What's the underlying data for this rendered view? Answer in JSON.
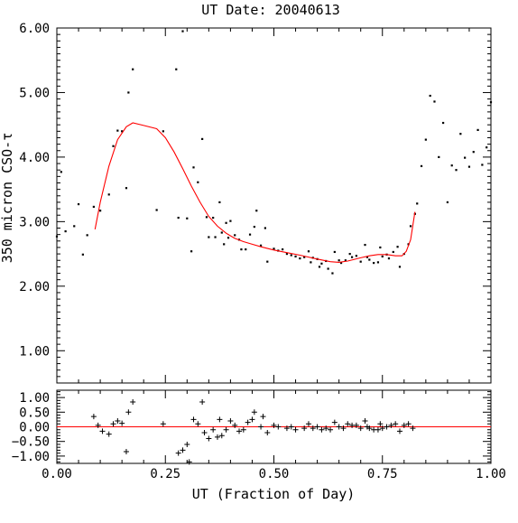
{
  "chart_data": [
    {
      "type": "scatter",
      "title": "UT Date: 20040613",
      "ylabel": "350 micron CSO-τ",
      "xlim": [
        0.0,
        1.0
      ],
      "ylim": [
        0.5,
        6.0
      ],
      "x_ticks": [
        0.0,
        0.25,
        0.5,
        0.75,
        1.0
      ],
      "y_ticks": [
        1.0,
        2.0,
        3.0,
        4.0,
        5.0,
        6.0
      ],
      "y_tick_labels": [
        "1.00",
        "2.00",
        "3.00",
        "4.00",
        "5.00",
        "6.00"
      ],
      "colors": {
        "points": "#000000",
        "fit": "#ff0000"
      },
      "series": [
        {
          "style": "points",
          "points": [
            [
              0.0,
              2.77
            ],
            [
              0.01,
              3.77
            ],
            [
              0.02,
              2.85
            ],
            [
              0.04,
              2.93
            ],
            [
              0.05,
              3.27
            ],
            [
              0.06,
              2.49
            ],
            [
              0.07,
              2.79
            ],
            [
              0.085,
              3.23
            ],
            [
              0.1,
              3.17
            ],
            [
              0.12,
              3.42
            ],
            [
              0.13,
              4.17
            ],
            [
              0.14,
              4.41
            ],
            [
              0.15,
              4.4
            ],
            [
              0.16,
              3.52
            ],
            [
              0.165,
              5.0
            ],
            [
              0.175,
              5.36
            ],
            [
              0.23,
              3.18
            ],
            [
              0.245,
              4.4
            ],
            [
              0.275,
              5.36
            ],
            [
              0.28,
              3.06
            ],
            [
              0.29,
              5.95
            ],
            [
              0.3,
              3.05
            ],
            [
              0.31,
              2.54
            ],
            [
              0.315,
              3.84
            ],
            [
              0.325,
              3.61
            ],
            [
              0.335,
              4.28
            ],
            [
              0.345,
              3.07
            ],
            [
              0.35,
              2.76
            ],
            [
              0.36,
              3.06
            ],
            [
              0.365,
              2.76
            ],
            [
              0.375,
              3.3
            ],
            [
              0.38,
              2.83
            ],
            [
              0.385,
              2.65
            ],
            [
              0.39,
              2.98
            ],
            [
              0.395,
              2.75
            ],
            [
              0.4,
              3.01
            ],
            [
              0.41,
              2.79
            ],
            [
              0.42,
              2.72
            ],
            [
              0.425,
              2.57
            ],
            [
              0.435,
              2.57
            ],
            [
              0.445,
              2.8
            ],
            [
              0.455,
              2.92
            ],
            [
              0.46,
              3.17
            ],
            [
              0.47,
              2.63
            ],
            [
              0.48,
              2.9
            ],
            [
              0.485,
              2.38
            ],
            [
              0.5,
              2.58
            ],
            [
              0.51,
              2.55
            ],
            [
              0.52,
              2.57
            ],
            [
              0.53,
              2.5
            ],
            [
              0.54,
              2.48
            ],
            [
              0.55,
              2.46
            ],
            [
              0.56,
              2.43
            ],
            [
              0.57,
              2.45
            ],
            [
              0.58,
              2.54
            ],
            [
              0.585,
              2.37
            ],
            [
              0.59,
              2.44
            ],
            [
              0.6,
              2.42
            ],
            [
              0.605,
              2.3
            ],
            [
              0.61,
              2.35
            ],
            [
              0.62,
              2.39
            ],
            [
              0.625,
              2.27
            ],
            [
              0.635,
              2.2
            ],
            [
              0.64,
              2.53
            ],
            [
              0.65,
              2.4
            ],
            [
              0.655,
              2.36
            ],
            [
              0.665,
              2.4
            ],
            [
              0.675,
              2.5
            ],
            [
              0.68,
              2.45
            ],
            [
              0.69,
              2.47
            ],
            [
              0.7,
              2.38
            ],
            [
              0.71,
              2.64
            ],
            [
              0.715,
              2.45
            ],
            [
              0.72,
              2.41
            ],
            [
              0.73,
              2.36
            ],
            [
              0.74,
              2.37
            ],
            [
              0.745,
              2.6
            ],
            [
              0.75,
              2.46
            ],
            [
              0.76,
              2.49
            ],
            [
              0.765,
              2.43
            ],
            [
              0.775,
              2.53
            ],
            [
              0.785,
              2.61
            ],
            [
              0.79,
              2.3
            ],
            [
              0.8,
              2.5
            ],
            [
              0.81,
              2.65
            ],
            [
              0.815,
              2.93
            ],
            [
              0.825,
              3.12
            ],
            [
              0.83,
              3.28
            ],
            [
              0.84,
              3.86
            ],
            [
              0.85,
              4.27
            ],
            [
              0.86,
              4.95
            ],
            [
              0.87,
              4.86
            ],
            [
              0.88,
              4.0
            ],
            [
              0.89,
              4.53
            ],
            [
              0.9,
              3.3
            ],
            [
              0.91,
              3.87
            ],
            [
              0.92,
              3.8
            ],
            [
              0.93,
              4.36
            ],
            [
              0.94,
              3.99
            ],
            [
              0.95,
              3.85
            ],
            [
              0.96,
              4.08
            ],
            [
              0.97,
              4.42
            ],
            [
              0.98,
              3.88
            ],
            [
              0.99,
              4.15
            ],
            [
              1.0,
              4.85
            ]
          ]
        },
        {
          "style": "line",
          "points": [
            [
              0.088,
              2.88
            ],
            [
              0.1,
              3.3
            ],
            [
              0.12,
              3.86
            ],
            [
              0.14,
              4.27
            ],
            [
              0.16,
              4.47
            ],
            [
              0.175,
              4.53
            ],
            [
              0.2,
              4.49
            ],
            [
              0.23,
              4.44
            ],
            [
              0.25,
              4.3
            ],
            [
              0.27,
              4.08
            ],
            [
              0.29,
              3.82
            ],
            [
              0.31,
              3.55
            ],
            [
              0.33,
              3.3
            ],
            [
              0.35,
              3.08
            ],
            [
              0.37,
              2.93
            ],
            [
              0.39,
              2.82
            ],
            [
              0.41,
              2.74
            ],
            [
              0.43,
              2.69
            ],
            [
              0.45,
              2.65
            ],
            [
              0.47,
              2.61
            ],
            [
              0.5,
              2.56
            ],
            [
              0.53,
              2.52
            ],
            [
              0.56,
              2.48
            ],
            [
              0.6,
              2.42
            ],
            [
              0.63,
              2.38
            ],
            [
              0.65,
              2.37
            ],
            [
              0.67,
              2.39
            ],
            [
              0.7,
              2.44
            ],
            [
              0.72,
              2.47
            ],
            [
              0.74,
              2.49
            ],
            [
              0.76,
              2.49
            ],
            [
              0.78,
              2.47
            ],
            [
              0.795,
              2.47
            ],
            [
              0.805,
              2.54
            ],
            [
              0.815,
              2.72
            ],
            [
              0.825,
              3.15
            ]
          ]
        }
      ]
    },
    {
      "type": "scatter",
      "xlabel": "UT (Fraction of Day)",
      "xlim": [
        0.0,
        1.0
      ],
      "ylim": [
        -1.25,
        1.25
      ],
      "x_ticks": [
        0.0,
        0.25,
        0.5,
        0.75,
        1.0
      ],
      "x_tick_labels": [
        "0.00",
        "0.25",
        "0.50",
        "0.75",
        "1.00"
      ],
      "y_ticks": [
        -1.0,
        -0.5,
        0.0,
        0.5,
        1.0
      ],
      "y_tick_labels": [
        "−1.00",
        "−0.50",
        "0.00",
        "0.50",
        "1.00"
      ],
      "colors": {
        "points": "#000000",
        "zero_line": "#ff0000"
      },
      "series": [
        {
          "style": "plus",
          "points": [
            [
              0.085,
              0.35
            ],
            [
              0.095,
              0.05
            ],
            [
              0.105,
              -0.15
            ],
            [
              0.12,
              -0.25
            ],
            [
              0.13,
              0.1
            ],
            [
              0.14,
              0.2
            ],
            [
              0.15,
              0.12
            ],
            [
              0.16,
              -0.85
            ],
            [
              0.165,
              0.5
            ],
            [
              0.175,
              0.85
            ],
            [
              0.245,
              0.1
            ],
            [
              0.28,
              -0.9
            ],
            [
              0.29,
              -0.8
            ],
            [
              0.3,
              -0.6
            ],
            [
              0.305,
              -1.2
            ],
            [
              0.315,
              0.25
            ],
            [
              0.325,
              0.1
            ],
            [
              0.335,
              0.85
            ],
            [
              0.34,
              -0.2
            ],
            [
              0.35,
              -0.4
            ],
            [
              0.36,
              -0.1
            ],
            [
              0.37,
              -0.35
            ],
            [
              0.375,
              0.25
            ],
            [
              0.38,
              -0.3
            ],
            [
              0.39,
              -0.1
            ],
            [
              0.4,
              0.2
            ],
            [
              0.41,
              0.05
            ],
            [
              0.42,
              -0.15
            ],
            [
              0.43,
              -0.1
            ],
            [
              0.44,
              0.15
            ],
            [
              0.45,
              0.25
            ],
            [
              0.455,
              0.5
            ],
            [
              0.47,
              0.0
            ],
            [
              0.475,
              0.35
            ],
            [
              0.485,
              -0.2
            ],
            [
              0.5,
              0.05
            ],
            [
              0.51,
              0.0
            ],
            [
              0.53,
              -0.05
            ],
            [
              0.54,
              0.0
            ],
            [
              0.55,
              -0.1
            ],
            [
              0.57,
              -0.05
            ],
            [
              0.58,
              0.1
            ],
            [
              0.59,
              -0.05
            ],
            [
              0.6,
              0.0
            ],
            [
              0.61,
              -0.1
            ],
            [
              0.62,
              -0.05
            ],
            [
              0.63,
              -0.1
            ],
            [
              0.64,
              0.15
            ],
            [
              0.65,
              0.0
            ],
            [
              0.66,
              -0.05
            ],
            [
              0.67,
              0.1
            ],
            [
              0.68,
              0.05
            ],
            [
              0.69,
              0.05
            ],
            [
              0.7,
              -0.05
            ],
            [
              0.71,
              0.2
            ],
            [
              0.715,
              0.0
            ],
            [
              0.72,
              -0.05
            ],
            [
              0.73,
              -0.1
            ],
            [
              0.74,
              -0.1
            ],
            [
              0.745,
              0.1
            ],
            [
              0.75,
              -0.05
            ],
            [
              0.76,
              0.0
            ],
            [
              0.77,
              0.05
            ],
            [
              0.78,
              0.1
            ],
            [
              0.79,
              -0.15
            ],
            [
              0.8,
              0.05
            ],
            [
              0.81,
              0.1
            ],
            [
              0.82,
              -0.05
            ]
          ]
        }
      ]
    }
  ]
}
